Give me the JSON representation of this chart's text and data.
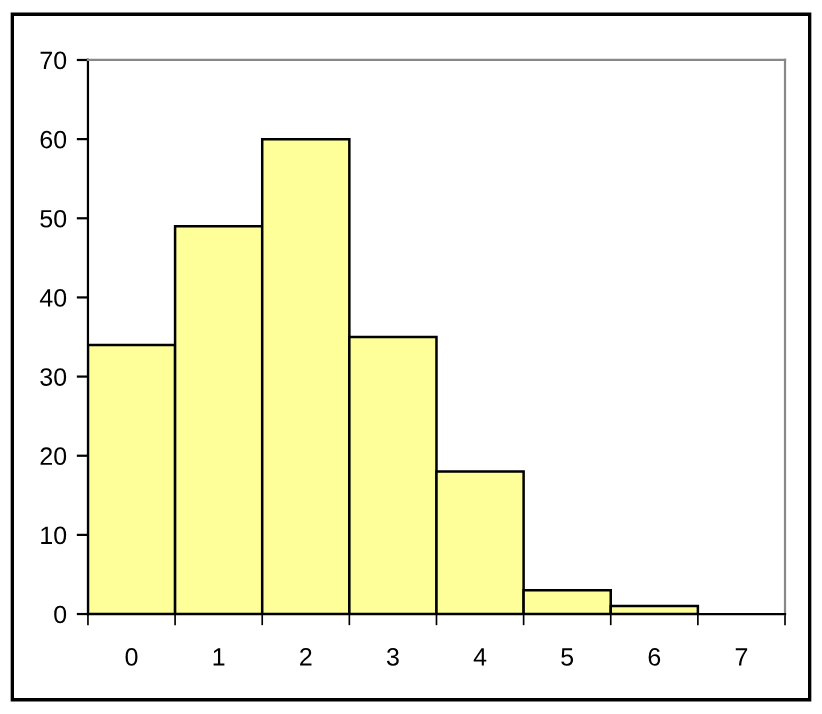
{
  "chart_data": {
    "type": "bar",
    "categories": [
      "0",
      "1",
      "2",
      "3",
      "4",
      "5",
      "6",
      "7"
    ],
    "values": [
      34,
      49,
      60,
      35,
      18,
      3,
      1,
      0
    ],
    "color": "#ffff99",
    "ylim": [
      0,
      70
    ],
    "yticks": [
      0,
      10,
      20,
      30,
      40,
      50,
      60,
      70
    ],
    "grid": false,
    "legend": false
  }
}
